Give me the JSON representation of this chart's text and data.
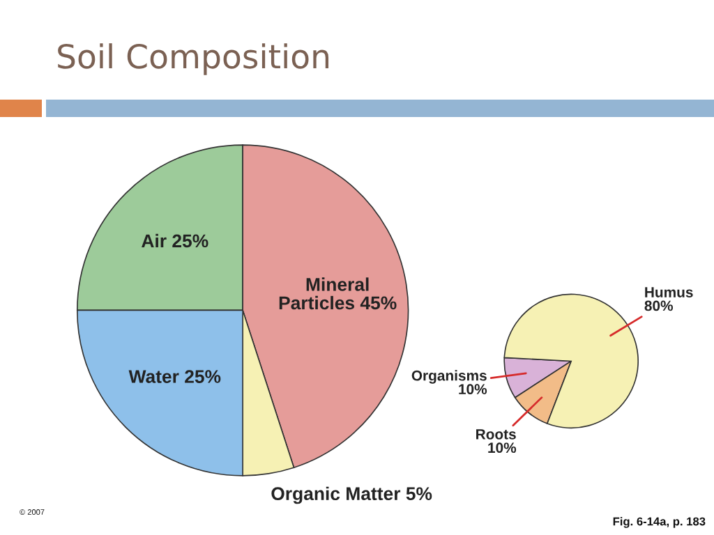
{
  "chart_data": [
    {
      "type": "pie",
      "title": "Soil Composition",
      "categories": [
        "Air",
        "Mineral Particles",
        "Organic Matter",
        "Water"
      ],
      "values": [
        25,
        45,
        5,
        25
      ],
      "value_labels": [
        "25%",
        "45%",
        "5%",
        "25%"
      ],
      "colors": [
        "#9dcb9a",
        "#e59c99",
        "#f6f1b4",
        "#8ec0ea"
      ],
      "annotations": [
        "© 2007",
        "Fig. 6-14a, p. 183"
      ]
    },
    {
      "type": "pie",
      "categories": [
        "Organisms",
        "Roots",
        "Humus"
      ],
      "values": [
        10,
        10,
        80
      ],
      "value_labels": [
        "10%",
        "10%",
        "80%"
      ],
      "colors": [
        "#d9b2d8",
        "#f2bc88",
        "#f6f1b4"
      ]
    }
  ]
}
